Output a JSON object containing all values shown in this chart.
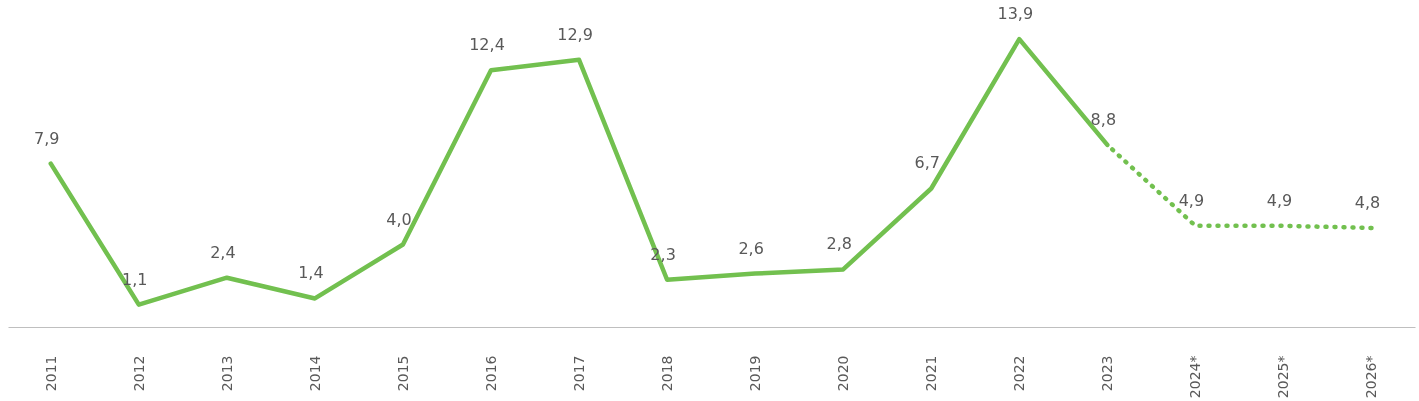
{
  "chart_data": {
    "type": "line",
    "categories": [
      "2011",
      "2012",
      "2013",
      "2014",
      "2015",
      "2016",
      "2017",
      "2018",
      "2019",
      "2020",
      "2021",
      "2022",
      "2023",
      "2024*",
      "2025*",
      "2026*"
    ],
    "series": [
      {
        "color": "#72c04f",
        "line_style": "solid",
        "values": [
          7.9,
          1.1,
          2.4,
          1.4,
          4.0,
          12.4,
          12.9,
          2.3,
          2.6,
          2.8,
          6.7,
          13.9,
          8.8,
          null,
          null,
          null
        ],
        "value_labels": [
          "7,9",
          "1,1",
          "2,4",
          "1,4",
          "4,0",
          "12,4",
          "12,9",
          "2,3",
          "2,6",
          "2,8",
          "6,7",
          "13,9",
          "8,8",
          null,
          null,
          null
        ]
      },
      {
        "color": "#72c04f",
        "line_style": "dotted",
        "values": [
          null,
          null,
          null,
          null,
          null,
          null,
          null,
          null,
          null,
          null,
          null,
          null,
          8.8,
          4.9,
          4.9,
          4.8
        ],
        "value_labels": [
          null,
          null,
          null,
          null,
          null,
          null,
          null,
          null,
          null,
          null,
          null,
          null,
          null,
          "4,9",
          "4,9",
          "4,8"
        ]
      }
    ],
    "grid": false,
    "marker": "none",
    "tick_labels": "x"
  }
}
